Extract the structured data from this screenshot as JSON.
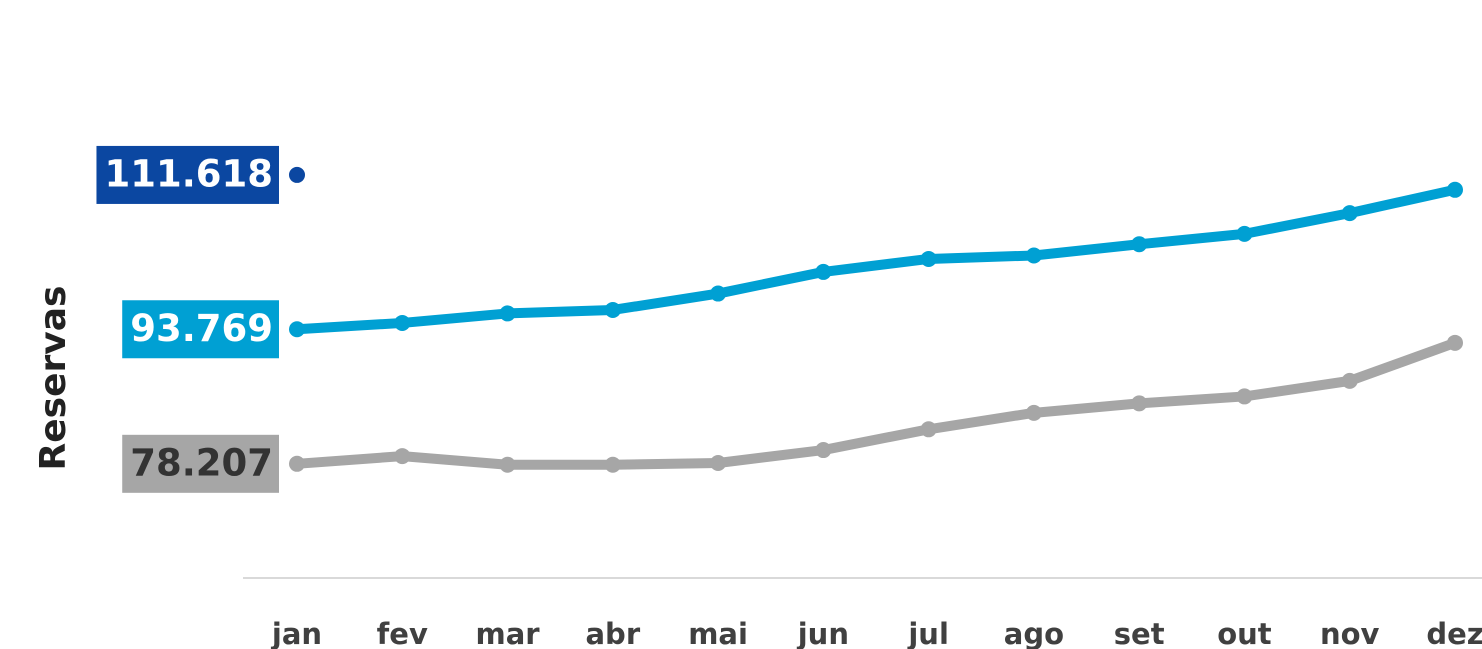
{
  "chart_data": {
    "type": "line",
    "y_label": "Reservas",
    "categories": [
      "jan",
      "fev",
      "mar",
      "abr",
      "mai",
      "jun",
      "jul",
      "ago",
      "set",
      "out",
      "nov",
      "dez"
    ],
    "ylim": [
      65000,
      130000
    ],
    "series": [
      {
        "color": "#0b47a1",
        "label_text_color": "#ffffff",
        "values": [
          111618,
          null,
          null,
          null,
          null,
          null,
          null,
          null,
          null,
          null,
          null,
          null
        ],
        "value_labels": [
          "111.618",
          null,
          null,
          null,
          null,
          null,
          null,
          null,
          null,
          null,
          null,
          null
        ]
      },
      {
        "color": "#00a0d3",
        "label_text_color": "#ffffff",
        "values": [
          93769,
          94500,
          95600,
          96000,
          97900,
          100400,
          101900,
          102300,
          103600,
          104800,
          107200,
          109900
        ],
        "value_labels": [
          "93.769",
          null,
          null,
          null,
          null,
          null,
          null,
          null,
          null,
          null,
          null,
          null
        ]
      },
      {
        "color": "#a6a6a6",
        "label_text_color": "#333333",
        "values": [
          78207,
          79100,
          78100,
          78100,
          78300,
          79800,
          82200,
          84100,
          85200,
          86000,
          87800,
          92200
        ],
        "value_labels": [
          "78.207",
          null,
          null,
          null,
          null,
          null,
          null,
          null,
          null,
          null,
          null,
          null
        ]
      }
    ]
  }
}
